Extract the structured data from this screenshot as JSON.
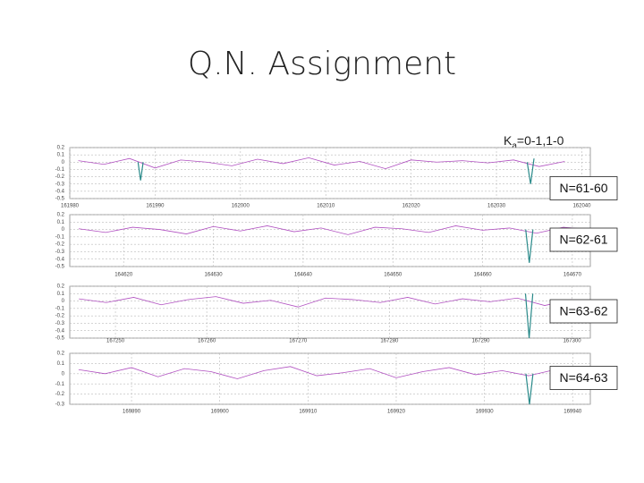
{
  "title": "Q.N. Assignment",
  "label": {
    "letter": "K",
    "subscript": "a",
    "rest": "=0-1,1-0"
  },
  "chart_data": [
    {
      "type": "line",
      "annotation": "N=61-60",
      "grid": true,
      "xlim": [
        161980,
        162041
      ],
      "xticks": [
        161980,
        161990,
        162000,
        162010,
        162020,
        162030,
        162040
      ],
      "ylim": [
        -0.5,
        0.2
      ],
      "yticks": [
        0.2,
        0.1,
        0,
        -0.1,
        -0.2,
        -0.3,
        -0.4,
        -0.5
      ],
      "series": [
        {
          "color": "#b04fc0",
          "x": [
            161981,
            161984,
            161987,
            161990,
            161993,
            161996,
            161999,
            162002,
            162005,
            162008,
            162011,
            162014,
            162017,
            162020,
            162023,
            162026,
            162029,
            162032,
            162035,
            162038
          ],
          "values": [
            0.02,
            -0.03,
            0.05,
            -0.08,
            0.03,
            0.0,
            -0.05,
            0.04,
            -0.02,
            0.06,
            -0.04,
            0.01,
            -0.09,
            0.03,
            0.0,
            0.02,
            -0.01,
            0.03,
            -0.06,
            0.01
          ]
        },
        {
          "color": "#2a8a8a",
          "x": [
            161988,
            161988.3,
            161988.6
          ],
          "values": [
            0,
            -0.25,
            0
          ]
        },
        {
          "color": "#2a8a8a",
          "x": [
            162033.6,
            162034,
            162034.4
          ],
          "values": [
            0,
            -0.3,
            0.05
          ]
        }
      ]
    },
    {
      "type": "line",
      "annotation": "N=62-61",
      "grid": true,
      "xlim": [
        164614,
        164672
      ],
      "xticks": [
        164620,
        164630,
        164640,
        164650,
        164660,
        164670
      ],
      "ylim": [
        -0.5,
        0.2
      ],
      "yticks": [
        0.2,
        0.1,
        0,
        -0.1,
        -0.2,
        -0.3,
        -0.4,
        -0.5
      ],
      "series": [
        {
          "color": "#b04fc0",
          "x": [
            164615,
            164618,
            164621,
            164624,
            164627,
            164630,
            164633,
            164636,
            164639,
            164642,
            164645,
            164648,
            164651,
            164654,
            164657,
            164660,
            164663,
            164666,
            164669,
            164672
          ],
          "values": [
            0.01,
            -0.04,
            0.03,
            0.0,
            -0.06,
            0.04,
            -0.02,
            0.05,
            -0.03,
            0.02,
            -0.07,
            0.03,
            0.01,
            -0.04,
            0.05,
            -0.01,
            0.02,
            -0.05,
            0.03,
            0.0
          ]
        },
        {
          "color": "#2a8a8a",
          "x": [
            164664.8,
            164665.2,
            164665.6
          ],
          "values": [
            0,
            -0.45,
            0
          ]
        }
      ]
    },
    {
      "type": "line",
      "annotation": "N=63-62",
      "grid": true,
      "xlim": [
        167245,
        167302
      ],
      "xticks": [
        167250,
        167260,
        167270,
        167280,
        167290,
        167300
      ],
      "ylim": [
        -0.5,
        0.2
      ],
      "yticks": [
        0.2,
        0.1,
        0,
        -0.1,
        -0.2,
        -0.3,
        -0.4,
        -0.5
      ],
      "series": [
        {
          "color": "#b04fc0",
          "x": [
            167246,
            167249,
            167252,
            167255,
            167258,
            167261,
            167264,
            167267,
            167270,
            167273,
            167276,
            167279,
            167282,
            167285,
            167288,
            167291,
            167294,
            167297,
            167300
          ],
          "values": [
            0.03,
            -0.02,
            0.05,
            -0.05,
            0.02,
            0.06,
            -0.03,
            0.01,
            -0.08,
            0.04,
            0.02,
            -0.02,
            0.05,
            -0.04,
            0.03,
            -0.01,
            0.04,
            -0.06,
            0.02
          ]
        },
        {
          "color": "#2a8a8a",
          "x": [
            167294.9,
            167295.3,
            167295.7
          ],
          "values": [
            0.1,
            -0.5,
            0.1
          ]
        }
      ]
    },
    {
      "type": "line",
      "annotation": "N=64-63",
      "grid": true,
      "xlim": [
        169883,
        169942
      ],
      "xticks": [
        169890,
        169900,
        169910,
        169920,
        169930,
        169940
      ],
      "ylim": [
        -0.3,
        0.2
      ],
      "yticks": [
        0.2,
        0.1,
        0,
        -0.1,
        -0.2,
        -0.3
      ],
      "series": [
        {
          "color": "#b04fc0",
          "x": [
            169884,
            169887,
            169890,
            169893,
            169896,
            169899,
            169902,
            169905,
            169908,
            169911,
            169914,
            169917,
            169920,
            169923,
            169926,
            169929,
            169932,
            169935,
            169938,
            169941
          ],
          "values": [
            0.04,
            0.0,
            0.06,
            -0.03,
            0.05,
            0.02,
            -0.05,
            0.03,
            0.07,
            -0.02,
            0.01,
            0.05,
            -0.04,
            0.02,
            0.06,
            -0.01,
            0.03,
            -0.02,
            0.04,
            0.01
          ]
        },
        {
          "color": "#2a8a8a",
          "x": [
            169934.7,
            169935.1,
            169935.5
          ],
          "values": [
            0,
            -0.3,
            0
          ]
        }
      ]
    }
  ]
}
